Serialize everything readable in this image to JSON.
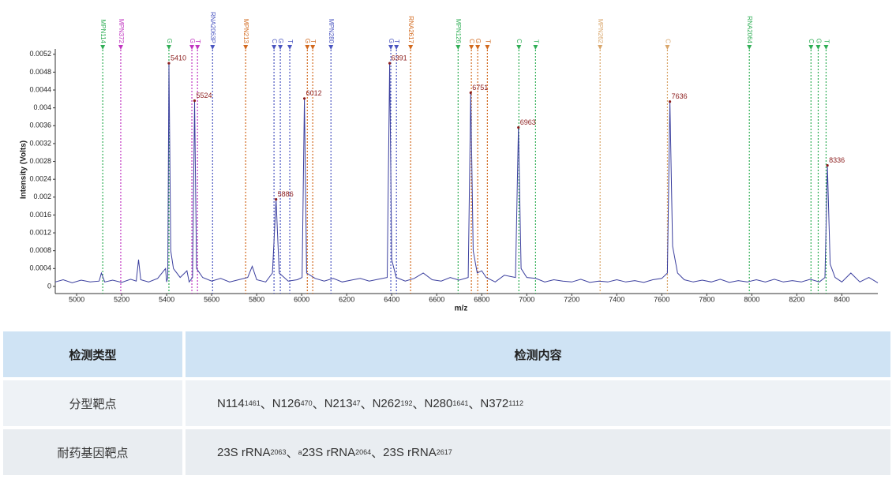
{
  "chart_data": {
    "type": "line",
    "x_label": "m/z",
    "y_label": "Intensity (Volts)",
    "color": "#3b3f9e",
    "xlim": [
      4905,
      8560
    ],
    "ylim": [
      -0.00016,
      0.00532
    ],
    "xticks": [
      5000,
      5200,
      5400,
      5600,
      5800,
      6000,
      6200,
      6400,
      6600,
      6800,
      7000,
      7200,
      7400,
      7600,
      7800,
      8000,
      8200,
      8400
    ],
    "yticks": [
      0,
      0.0004,
      0.0008,
      0.0012,
      0.0016,
      0.002,
      0.0024,
      0.0028,
      0.0032,
      0.0036,
      0.004,
      0.0044,
      0.0048,
      0.0052
    ],
    "x": [
      4905,
      4940,
      4980,
      5020,
      5060,
      5100,
      5110,
      5125,
      5160,
      5200,
      5240,
      5265,
      5275,
      5285,
      5320,
      5360,
      5395,
      5400,
      5405,
      5410,
      5418,
      5430,
      5460,
      5490,
      5500,
      5515,
      5524,
      5533,
      5560,
      5600,
      5640,
      5680,
      5720,
      5760,
      5780,
      5800,
      5840,
      5870,
      5886,
      5900,
      5940,
      5980,
      6002,
      6012,
      6022,
      6060,
      6100,
      6140,
      6180,
      6220,
      6260,
      6300,
      6340,
      6380,
      6391,
      6400,
      6420,
      6460,
      6500,
      6540,
      6580,
      6620,
      6660,
      6700,
      6740,
      6751,
      6762,
      6780,
      6800,
      6820,
      6860,
      6900,
      6950,
      6963,
      6975,
      7000,
      7040,
      7080,
      7120,
      7160,
      7200,
      7240,
      7280,
      7320,
      7360,
      7400,
      7440,
      7480,
      7520,
      7560,
      7600,
      7625,
      7636,
      7648,
      7670,
      7700,
      7740,
      7780,
      7820,
      7860,
      7900,
      7940,
      7980,
      8020,
      8060,
      8100,
      8140,
      8180,
      8220,
      8260,
      8300,
      8325,
      8336,
      8348,
      8370,
      8400,
      8440,
      8480,
      8520,
      8560
    ],
    "values": [
      0.0001,
      0.00015,
      8e-05,
      0.00014,
      0.0001,
      0.00012,
      0.0003,
      0.0001,
      0.00014,
      9e-05,
      0.00016,
      0.00012,
      0.0006,
      0.00015,
      0.0001,
      0.00018,
      0.0004,
      0.0001,
      0.0002,
      0.005,
      0.0008,
      0.0004,
      0.0002,
      0.00035,
      0.0001,
      0.0002,
      0.00416,
      0.0004,
      0.0002,
      0.00012,
      0.00018,
      0.0001,
      0.00015,
      0.0002,
      0.00045,
      0.00015,
      0.0001,
      0.0003,
      0.00195,
      0.0003,
      0.00012,
      0.00015,
      0.0002,
      0.00421,
      0.0003,
      0.00018,
      0.00012,
      0.00018,
      0.0001,
      0.00014,
      0.00018,
      0.00012,
      0.00016,
      0.0002,
      0.005,
      0.0006,
      0.0002,
      0.00012,
      0.00018,
      0.0003,
      0.00015,
      0.00012,
      0.0002,
      0.00014,
      0.0002,
      0.00434,
      0.0008,
      0.0003,
      0.00035,
      0.0002,
      0.0001,
      0.00025,
      0.0002,
      0.00356,
      0.0004,
      0.0002,
      0.00018,
      0.0001,
      0.00015,
      0.00012,
      0.0001,
      0.00016,
      9e-05,
      0.00012,
      0.0001,
      0.00015,
      0.0001,
      0.00013,
      9e-05,
      0.00015,
      0.00018,
      0.0003,
      0.00414,
      0.0009,
      0.0003,
      0.00015,
      0.0001,
      0.00014,
      0.0001,
      0.00016,
      9e-05,
      0.00013,
      0.0001,
      0.00015,
      0.0001,
      0.00016,
      0.0001,
      0.00013,
      0.0001,
      0.00016,
      0.0001,
      0.0002,
      0.00271,
      0.0005,
      0.0002,
      0.0001,
      0.0003,
      0.0001,
      0.0002,
      8e-05
    ],
    "peaks": {
      "color": "#8b1c1c",
      "x": [
        5410,
        5524,
        5886,
        6012,
        6391,
        6751,
        6963,
        7636,
        8336
      ],
      "values": [
        0.005,
        0.00416,
        0.00195,
        0.00421,
        0.005,
        0.00434,
        0.00356,
        0.00414,
        0.00271
      ]
    },
    "markers": [
      {
        "x": 5116,
        "label": "MPN114",
        "color": "#2fae55"
      },
      {
        "x": 5196,
        "label": "MPN372",
        "color": "#c034c0"
      },
      {
        "x": 5410,
        "label": "G",
        "color": "#2fae55"
      },
      {
        "x": 5512,
        "label": "G",
        "color": "#c034c0"
      },
      {
        "x": 5537,
        "label": "T",
        "color": "#c034c0"
      },
      {
        "x": 5604,
        "label": "RNA2063P",
        "color": "#4a55c0"
      },
      {
        "x": 5751,
        "label": "MPN213",
        "color": "#d2691e"
      },
      {
        "x": 5877,
        "label": "C",
        "color": "#4a55c0"
      },
      {
        "x": 5905,
        "label": "G",
        "color": "#4a55c0"
      },
      {
        "x": 5947,
        "label": "T",
        "color": "#4a55c0"
      },
      {
        "x": 6025,
        "label": "G",
        "color": "#d2691e"
      },
      {
        "x": 6049,
        "label": "T",
        "color": "#d2691e"
      },
      {
        "x": 6130,
        "label": "MPN280",
        "color": "#4a55c0"
      },
      {
        "x": 6396,
        "label": "G",
        "color": "#4a55c0"
      },
      {
        "x": 6421,
        "label": "T",
        "color": "#4a55c0"
      },
      {
        "x": 6484,
        "label": "RNA2617",
        "color": "#d2691e"
      },
      {
        "x": 6695,
        "label": "MPN126",
        "color": "#2fae55"
      },
      {
        "x": 6754,
        "label": "C",
        "color": "#d2691e"
      },
      {
        "x": 6782,
        "label": "G",
        "color": "#d2691e"
      },
      {
        "x": 6825,
        "label": "T",
        "color": "#d2691e"
      },
      {
        "x": 6965,
        "label": "C",
        "color": "#2fae55"
      },
      {
        "x": 7039,
        "label": "T",
        "color": "#2fae55"
      },
      {
        "x": 7326,
        "label": "MPN262",
        "color": "#d9a66b"
      },
      {
        "x": 7625,
        "label": "C",
        "color": "#d9a66b"
      },
      {
        "x": 7989,
        "label": "RNA2064",
        "color": "#2fae55"
      },
      {
        "x": 8263,
        "label": "C",
        "color": "#2fae55"
      },
      {
        "x": 8295,
        "label": "G",
        "color": "#2fae55"
      },
      {
        "x": 8330,
        "label": "T",
        "color": "#2fae55"
      }
    ]
  },
  "table": {
    "header": [
      "检测类型",
      "检测内容"
    ],
    "rows": [
      {
        "type": "分型靶点",
        "separator": "、",
        "items": [
          {
            "text": "N114",
            "sup": "1461"
          },
          {
            "text": "N126",
            "sup": "470"
          },
          {
            "text": "N213",
            "sup": "47"
          },
          {
            "text": "N262",
            "sup": "192"
          },
          {
            "text": "N280",
            "sup": "1641"
          },
          {
            "text": "N372",
            "sup": "1112"
          }
        ]
      },
      {
        "type": "耐药基因靶点",
        "separator": "、",
        "items": [
          {
            "text": "23S rRNA",
            "sup": "2063"
          },
          {
            "pre": "a",
            "text": "23S rRNA",
            "sup": "2064"
          },
          {
            "text": "23S rRNA",
            "sup": "2617"
          }
        ]
      }
    ]
  }
}
